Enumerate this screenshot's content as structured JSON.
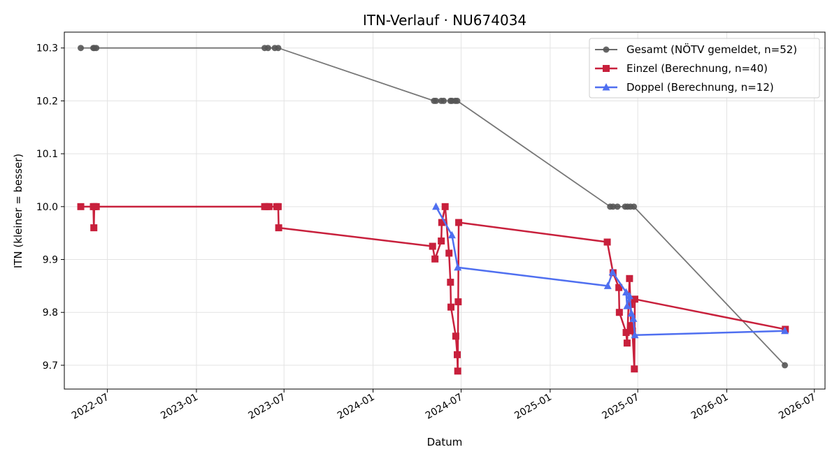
{
  "chart_data": {
    "type": "line",
    "title": "ITN-Verlauf · NU674034",
    "xlabel": "Datum",
    "ylabel": "ITN  (kleiner = besser)",
    "ylim": [
      9.655,
      10.33
    ],
    "yticks": [
      9.7,
      9.8,
      9.9,
      10.0,
      10.1,
      10.2,
      10.3
    ],
    "ytick_labels": [
      "9.7",
      "9.8",
      "9.9",
      "10.0",
      "10.1",
      "10.2",
      "10.3"
    ],
    "xlim": [
      "2022-04-03",
      "2026-07-23"
    ],
    "xticks": [
      "2022-07-01",
      "2023-01-01",
      "2023-07-01",
      "2024-01-01",
      "2024-07-01",
      "2025-01-01",
      "2025-07-01",
      "2026-01-01",
      "2026-07-01"
    ],
    "xtick_labels": [
      "2022-07",
      "2023-01",
      "2023-07",
      "2024-01",
      "2024-07",
      "2025-01",
      "2025-07",
      "2026-01",
      "2026-07"
    ],
    "grid": true,
    "legend_position": "top-right",
    "series": [
      {
        "name": "Gesamt (NÖTV gemeldet, n=52)",
        "color": "#555555",
        "marker": "circle",
        "points": [
          [
            "2022-05-07",
            10.3
          ],
          [
            "2022-06-02",
            10.3
          ],
          [
            "2022-06-04",
            10.3
          ],
          [
            "2022-06-08",
            10.3
          ],
          [
            "2023-05-22",
            10.3
          ],
          [
            "2023-05-29",
            10.3
          ],
          [
            "2023-06-12",
            10.3
          ],
          [
            "2023-06-19",
            10.3
          ],
          [
            "2024-05-06",
            10.2
          ],
          [
            "2024-05-10",
            10.2
          ],
          [
            "2024-05-21",
            10.2
          ],
          [
            "2024-05-26",
            10.2
          ],
          [
            "2024-06-09",
            10.2
          ],
          [
            "2024-06-12",
            10.2
          ],
          [
            "2024-06-19",
            10.2
          ],
          [
            "2024-06-23",
            10.2
          ],
          [
            "2025-05-05",
            10.0
          ],
          [
            "2025-05-11",
            10.0
          ],
          [
            "2025-05-20",
            10.0
          ],
          [
            "2025-06-05",
            10.0
          ],
          [
            "2025-06-10",
            10.0
          ],
          [
            "2025-06-16",
            10.0
          ],
          [
            "2025-06-23",
            10.0
          ],
          [
            "2026-05-01",
            9.7
          ]
        ]
      },
      {
        "name": "Einzel (Berechnung, n=40)",
        "color": "#c8203c",
        "marker": "square",
        "points": [
          [
            "2022-05-07",
            10.0
          ],
          [
            "2022-06-02",
            10.0
          ],
          [
            "2022-06-03",
            9.96
          ],
          [
            "2022-06-04",
            10.0
          ],
          [
            "2022-06-08",
            10.0
          ],
          [
            "2023-05-22",
            10.0
          ],
          [
            "2023-05-26",
            10.0
          ],
          [
            "2023-05-31",
            10.0
          ],
          [
            "2023-06-16",
            10.0
          ],
          [
            "2023-06-19",
            10.0
          ],
          [
            "2023-06-20",
            9.96
          ],
          [
            "2024-05-03",
            9.925
          ],
          [
            "2024-05-08",
            9.901
          ],
          [
            "2024-05-21",
            9.935
          ],
          [
            "2024-05-22",
            9.97
          ],
          [
            "2024-05-29",
            10.0
          ],
          [
            "2024-06-06",
            9.912
          ],
          [
            "2024-06-09",
            9.857
          ],
          [
            "2024-06-10",
            9.81
          ],
          [
            "2024-06-20",
            9.755
          ],
          [
            "2024-06-23",
            9.72
          ],
          [
            "2024-06-24",
            9.689
          ],
          [
            "2024-06-25",
            9.82
          ],
          [
            "2024-06-26",
            9.97
          ],
          [
            "2025-04-29",
            9.933
          ],
          [
            "2025-05-11",
            9.875
          ],
          [
            "2025-05-23",
            9.847
          ],
          [
            "2025-05-24",
            9.8
          ],
          [
            "2025-06-07",
            9.762
          ],
          [
            "2025-06-09",
            9.742
          ],
          [
            "2025-06-14",
            9.864
          ],
          [
            "2025-06-16",
            9.815
          ],
          [
            "2025-06-17",
            9.775
          ],
          [
            "2025-06-20",
            9.765
          ],
          [
            "2025-06-24",
            9.693
          ],
          [
            "2025-06-25",
            9.825
          ],
          [
            "2026-05-02",
            9.768
          ]
        ]
      },
      {
        "name": "Doppel (Berechnung, n=12)",
        "color": "#4f6ff0",
        "marker": "triangle",
        "points": [
          [
            "2024-05-10",
            10.0
          ],
          [
            "2024-06-12",
            9.946
          ],
          [
            "2024-06-24",
            9.885
          ],
          [
            "2025-04-30",
            9.85
          ],
          [
            "2025-05-10",
            9.876
          ],
          [
            "2025-06-07",
            9.838
          ],
          [
            "2025-06-09",
            9.812
          ],
          [
            "2025-06-14",
            9.831
          ],
          [
            "2025-06-18",
            9.798
          ],
          [
            "2025-06-22",
            9.788
          ],
          [
            "2025-06-25",
            9.757
          ],
          [
            "2026-05-01",
            9.765
          ]
        ]
      }
    ]
  }
}
